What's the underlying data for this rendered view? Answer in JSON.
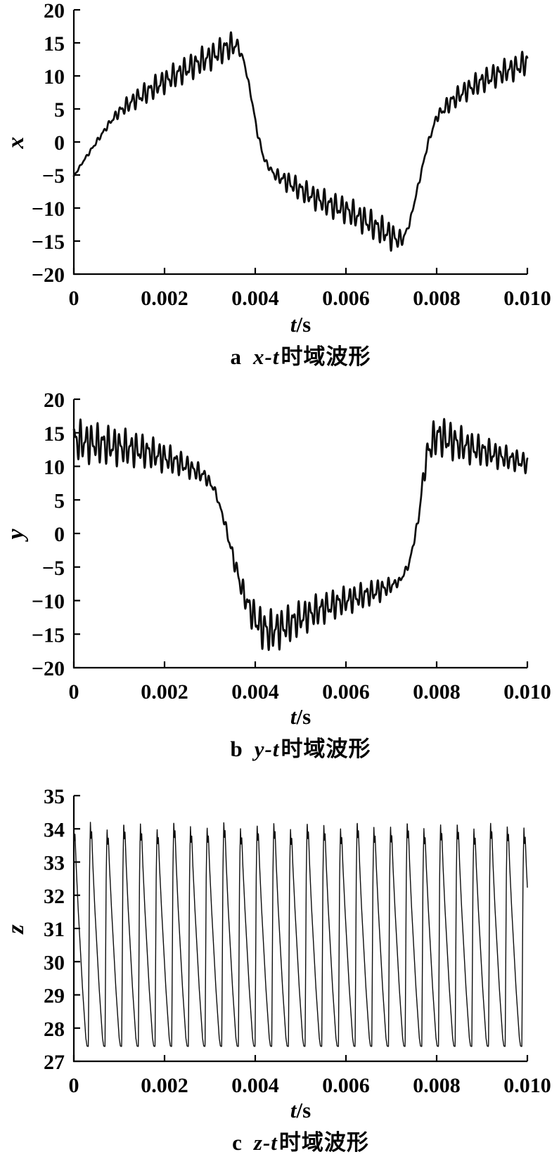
{
  "page": {
    "background": "#ffffff",
    "text_color": "#000000"
  },
  "chart_data": [
    {
      "id": "a",
      "type": "line",
      "caption_index": "a",
      "caption_formula": "x-t",
      "caption_text": "时域波形",
      "xlabel_var": "t",
      "xlabel_unit": "/s",
      "ylabel": "x",
      "xlim": [
        0,
        0.01
      ],
      "ylim": [
        -20,
        20
      ],
      "xticks": [
        0,
        0.002,
        0.004,
        0.006,
        0.008,
        0.01
      ],
      "xtick_labels": [
        "0",
        "0.002",
        "0.004",
        "0.006",
        "0.008",
        "0.010"
      ],
      "yticks": [
        20,
        15,
        10,
        5,
        0,
        -5,
        -10,
        -15,
        -20
      ],
      "ytick_labels": [
        "20",
        "15",
        "10",
        "5",
        "0",
        "−5",
        "−10",
        "−15",
        "−20"
      ],
      "grid": false,
      "legend": null,
      "line_color": "#0d0d0d",
      "line_width": 2.7,
      "waveform": {
        "kind": "envelope_osc",
        "samples": 2600,
        "base_points": [
          [
            0,
            -5.2
          ],
          [
            0.0002,
            -3.0
          ],
          [
            0.0004,
            -1.0
          ],
          [
            0.0006,
            1.0
          ],
          [
            0.0008,
            3.0
          ],
          [
            0.001,
            4.6
          ],
          [
            0.0013,
            6.2
          ],
          [
            0.0016,
            7.5
          ],
          [
            0.002,
            9.2
          ],
          [
            0.0024,
            10.7
          ],
          [
            0.0028,
            12.2
          ],
          [
            0.0031,
            13.2
          ],
          [
            0.0034,
            14.4
          ],
          [
            0.0036,
            14.7
          ],
          [
            0.00375,
            12.3
          ],
          [
            0.0039,
            7.3
          ],
          [
            0.00405,
            1.3
          ],
          [
            0.0042,
            -2.7
          ],
          [
            0.0044,
            -4.8
          ],
          [
            0.0048,
            -6.4
          ],
          [
            0.0052,
            -8.0
          ],
          [
            0.0056,
            -9.4
          ],
          [
            0.006,
            -10.3
          ],
          [
            0.0064,
            -11.8
          ],
          [
            0.0068,
            -13.4
          ],
          [
            0.0071,
            -14.6
          ],
          [
            0.00725,
            -14.8
          ],
          [
            0.0074,
            -12.4
          ],
          [
            0.0076,
            -6.4
          ],
          [
            0.0078,
            -0.4
          ],
          [
            0.008,
            3.8
          ],
          [
            0.0083,
            6.0
          ],
          [
            0.0086,
            7.6
          ],
          [
            0.009,
            9.2
          ],
          [
            0.0094,
            10.4
          ],
          [
            0.0098,
            11.4
          ],
          [
            0.01,
            12.2
          ]
        ],
        "amp_points": [
          [
            0,
            0.1
          ],
          [
            0.0008,
            0.4
          ],
          [
            0.0012,
            1.1
          ],
          [
            0.0018,
            1.5
          ],
          [
            0.0028,
            1.7
          ],
          [
            0.0035,
            1.7
          ],
          [
            0.0037,
            0.3
          ],
          [
            0.0043,
            0.4
          ],
          [
            0.0047,
            1.3
          ],
          [
            0.0055,
            1.6
          ],
          [
            0.0065,
            1.8
          ],
          [
            0.0071,
            1.8
          ],
          [
            0.0073,
            0.3
          ],
          [
            0.0079,
            0.4
          ],
          [
            0.0083,
            1.2
          ],
          [
            0.009,
            1.5
          ],
          [
            0.01,
            1.6
          ]
        ],
        "osc": {
          "f1": 7800,
          "w1": 0.78,
          "p1": 1.2,
          "f2": 12600,
          "w2": 0.5,
          "p2": 4.0
        }
      }
    },
    {
      "id": "b",
      "type": "line",
      "caption_index": "b",
      "caption_formula": "y-t",
      "caption_text": "时域波形",
      "xlabel_var": "t",
      "xlabel_unit": "/s",
      "ylabel": "y",
      "xlim": [
        0,
        0.01
      ],
      "ylim": [
        -20,
        20
      ],
      "xticks": [
        0,
        0.002,
        0.004,
        0.006,
        0.008,
        0.01
      ],
      "xtick_labels": [
        "0",
        "0.002",
        "0.004",
        "0.006",
        "0.008",
        "0.010"
      ],
      "yticks": [
        20,
        15,
        10,
        5,
        0,
        -5,
        -10,
        -15,
        -20
      ],
      "ytick_labels": [
        "20",
        "15",
        "10",
        "5",
        "0",
        "−5",
        "−10",
        "−15",
        "−20"
      ],
      "grid": false,
      "legend": null,
      "line_color": "#0d0d0d",
      "line_width": 2.7,
      "waveform": {
        "kind": "envelope_osc",
        "samples": 2600,
        "base_points": [
          [
            0,
            13.8
          ],
          [
            0.0004,
            13.5
          ],
          [
            0.0008,
            13.1
          ],
          [
            0.0012,
            12.7
          ],
          [
            0.0016,
            12.2
          ],
          [
            0.002,
            11.3
          ],
          [
            0.0024,
            10.3
          ],
          [
            0.0027,
            9.3
          ],
          [
            0.0029,
            8.5
          ],
          [
            0.0031,
            6.6
          ],
          [
            0.0033,
            2.3
          ],
          [
            0.0035,
            -3.2
          ],
          [
            0.0037,
            -8.2
          ],
          [
            0.0039,
            -11.6
          ],
          [
            0.0041,
            -13.7
          ],
          [
            0.0043,
            -14.7
          ],
          [
            0.0046,
            -14.0
          ],
          [
            0.005,
            -12.6
          ],
          [
            0.0054,
            -11.4
          ],
          [
            0.0058,
            -10.4
          ],
          [
            0.0062,
            -9.6
          ],
          [
            0.0066,
            -8.8
          ],
          [
            0.007,
            -7.8
          ],
          [
            0.0072,
            -7.0
          ],
          [
            0.0074,
            -4.4
          ],
          [
            0.0076,
            2.2
          ],
          [
            0.0077,
            8.0
          ],
          [
            0.0078,
            12.2
          ],
          [
            0.008,
            14.6
          ],
          [
            0.0083,
            13.9
          ],
          [
            0.0086,
            13.1
          ],
          [
            0.009,
            12.3
          ],
          [
            0.0094,
            11.5
          ],
          [
            0.0098,
            10.8
          ],
          [
            0.01,
            10.4
          ]
        ],
        "amp_points": [
          [
            0,
            2.6
          ],
          [
            0.001,
            2.3
          ],
          [
            0.002,
            1.8
          ],
          [
            0.0028,
            1.1
          ],
          [
            0.0032,
            0.3
          ],
          [
            0.0038,
            1.6
          ],
          [
            0.0042,
            2.7
          ],
          [
            0.005,
            2.1
          ],
          [
            0.006,
            1.7
          ],
          [
            0.0068,
            1.4
          ],
          [
            0.0072,
            0.4
          ],
          [
            0.0076,
            0.5
          ],
          [
            0.0079,
            2.3
          ],
          [
            0.0082,
            2.4
          ],
          [
            0.009,
            1.8
          ],
          [
            0.0096,
            1.4
          ],
          [
            0.01,
            1.2
          ]
        ],
        "osc": {
          "f1": 8100,
          "w1": 0.8,
          "p1": 0.3,
          "f2": 13100,
          "w2": 0.5,
          "p2": 2.2
        }
      }
    },
    {
      "id": "c",
      "type": "line",
      "caption_index": "c",
      "caption_formula": "z-t",
      "caption_text": "时域波形",
      "xlabel_var": "t",
      "xlabel_unit": "/s",
      "ylabel": "z",
      "xlim": [
        0,
        0.01
      ],
      "ylim": [
        27,
        35
      ],
      "xticks": [
        0,
        0.002,
        0.004,
        0.006,
        0.008,
        0.01
      ],
      "xtick_labels": [
        "0",
        "0.002",
        "0.004",
        "0.006",
        "0.008",
        "0.010"
      ],
      "yticks": [
        35,
        34,
        33,
        32,
        31,
        30,
        29,
        28,
        27
      ],
      "ytick_labels": [
        "35",
        "34",
        "33",
        "32",
        "31",
        "30",
        "29",
        "28",
        "27"
      ],
      "grid": false,
      "legend": null,
      "line_color": "#0d0d0d",
      "line_width": 1.4,
      "waveform": {
        "kind": "spike_train",
        "samples": 3200,
        "cycles": 27.2,
        "phase0": 0.16,
        "peak_jitter": 0.12,
        "shape": [
          [
            0,
            27.45
          ],
          [
            0.03,
            27.45
          ],
          [
            0.06,
            29.6
          ],
          [
            0.1,
            32.6
          ],
          [
            0.13,
            33.5
          ],
          [
            0.155,
            34.12
          ],
          [
            0.19,
            33.62
          ],
          [
            0.23,
            33.85
          ],
          [
            0.3,
            32.9
          ],
          [
            0.42,
            31.6
          ],
          [
            0.55,
            30.4
          ],
          [
            0.68,
            29.2
          ],
          [
            0.8,
            28.3
          ],
          [
            0.88,
            27.7
          ],
          [
            0.95,
            27.46
          ],
          [
            1,
            27.45
          ]
        ]
      }
    }
  ],
  "axis_style": {
    "color": "#000000",
    "tick_len": 9,
    "tick_font_size": 30
  }
}
